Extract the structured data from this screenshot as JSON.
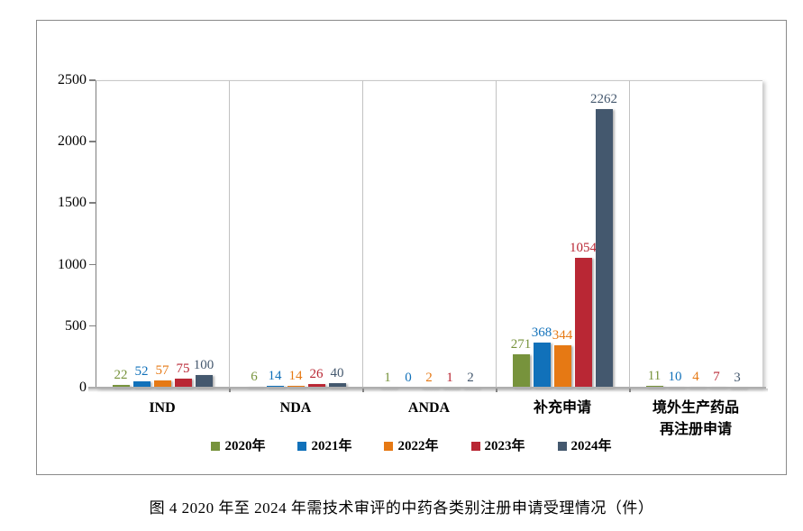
{
  "figure": {
    "caption": "图 4  2020 年至 2024 年需技术审评的中药各类别注册申请受理情况（件）"
  },
  "chart_data": {
    "type": "bar",
    "title": "",
    "categories": [
      "IND",
      "NDA",
      "ANDA",
      "补充申请",
      "境外生产药品\n再注册申请"
    ],
    "series": [
      {
        "name": "2020年",
        "color": "#77933C",
        "values": [
          22,
          6,
          1,
          271,
          11
        ]
      },
      {
        "name": "2021年",
        "color": "#1171BA",
        "values": [
          52,
          14,
          0,
          368,
          10
        ]
      },
      {
        "name": "2022年",
        "color": "#E67914",
        "values": [
          57,
          14,
          2,
          344,
          4
        ]
      },
      {
        "name": "2023年",
        "color": "#B92734",
        "values": [
          75,
          26,
          1,
          1054,
          7
        ]
      },
      {
        "name": "2024年",
        "color": "#44586E",
        "values": [
          100,
          40,
          2,
          2262,
          3
        ]
      }
    ],
    "ylim": [
      0,
      2500
    ],
    "yticks": [
      0,
      500,
      1000,
      1500,
      2000,
      2500
    ],
    "xlabel": "",
    "ylabel": "",
    "grid": "vertical-category-separators",
    "legend_position": "bottom",
    "show_value_labels": true
  },
  "colors": {
    "axis_line": "#7f7f7f",
    "baseline": "#aeaeae",
    "separator": "#c2c2c2",
    "figure_border": "#8a8a8a",
    "text": "#000000"
  }
}
